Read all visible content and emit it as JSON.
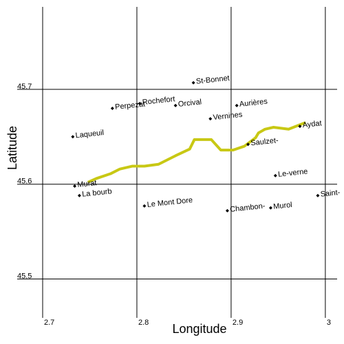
{
  "chart_data": {
    "type": "scatter",
    "xlabel": "Longitude",
    "ylabel": "Latitude",
    "xlim": [
      2.7,
      3.0125
    ],
    "ylim": [
      45.459,
      45.787
    ],
    "xticks": [
      2.7,
      2.8,
      2.9,
      3
    ],
    "yticks": [
      45.5,
      45.6,
      45.7
    ],
    "grid": true,
    "color": "#000000",
    "labels": [
      "St-Bonnet",
      "Rochefort",
      "Perpezat",
      "Orcival",
      "Aurières",
      "Vernines",
      "Laqueuil",
      "Aydat",
      "Saulzet-",
      "Le-verne",
      "Murat",
      "La bourb",
      "Le Mont Dore",
      "Saint-",
      "Chambon-",
      "Murol"
    ],
    "x": [
      2.86,
      2.803,
      2.774,
      2.841,
      2.906,
      2.878,
      2.732,
      2.973,
      2.918,
      2.947,
      2.734,
      2.739,
      2.808,
      2.992,
      2.896,
      2.942
    ],
    "y": [
      45.707,
      45.685,
      45.68,
      45.683,
      45.683,
      45.669,
      45.65,
      45.661,
      45.642,
      45.609,
      45.598,
      45.588,
      45.577,
      45.588,
      45.572,
      45.575
    ],
    "line": {
      "color": "#c8c814",
      "x": [
        2.748,
        2.757,
        2.772,
        2.782,
        2.795,
        2.808,
        2.823,
        2.841,
        2.856,
        2.861,
        2.879,
        2.889,
        2.902,
        2.914,
        2.926,
        2.929,
        2.936,
        2.945,
        2.961,
        2.979
      ],
      "y": [
        45.602,
        45.606,
        45.611,
        45.616,
        45.619,
        45.619,
        45.621,
        45.63,
        45.637,
        45.647,
        45.647,
        45.636,
        45.636,
        45.64,
        45.649,
        45.654,
        45.658,
        45.66,
        45.658,
        45.665
      ]
    }
  }
}
